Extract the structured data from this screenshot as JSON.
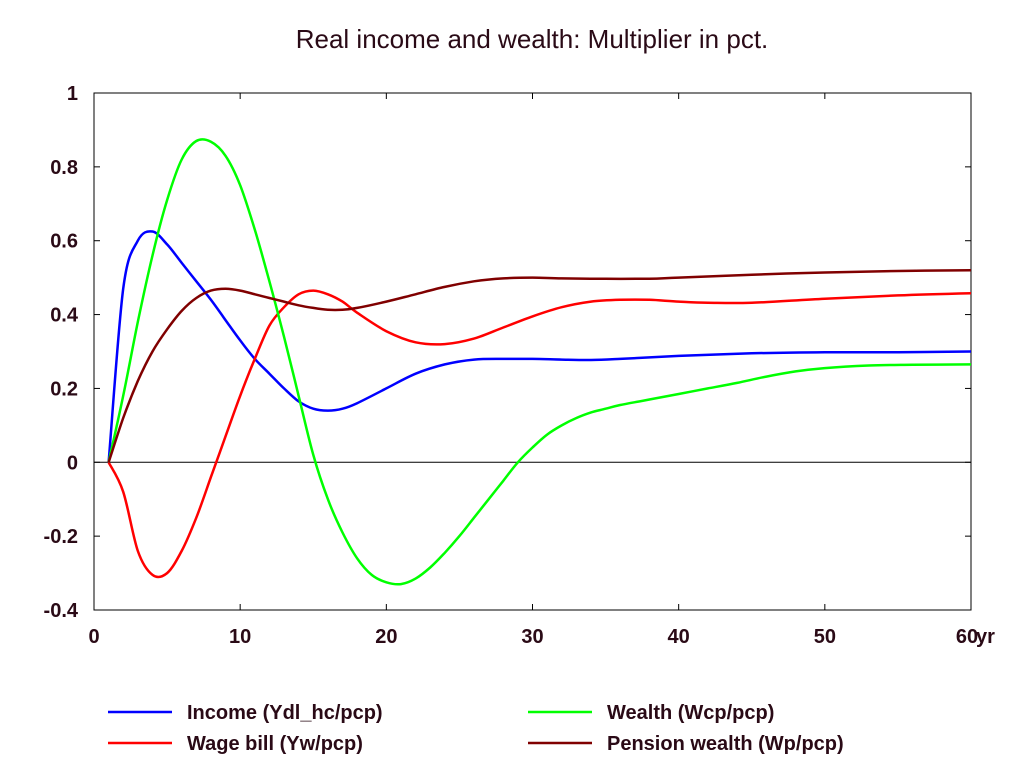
{
  "chart_data": {
    "type": "line",
    "title": "Real income and wealth: Multiplier in pct.",
    "xlabel": "",
    "ylabel": "",
    "x_unit_label": "yr",
    "xlim": [
      0,
      60
    ],
    "ylim": [
      -0.4,
      1
    ],
    "x_ticks": [
      "0",
      "10",
      "20",
      "30",
      "40",
      "50",
      "60"
    ],
    "y_ticks": [
      "1",
      "0.8",
      "0.6",
      "0.4",
      "0.2",
      "0",
      "-0.2",
      "-0.4"
    ],
    "grid": false,
    "zero_line": true,
    "legend_position": "bottom",
    "series": [
      {
        "name": "Income (Ydl_hc/pcp)",
        "color": "#0000ff",
        "points": [
          [
            1,
            0
          ],
          [
            2,
            0.47
          ],
          [
            3,
            0.6
          ],
          [
            4,
            0.625
          ],
          [
            5,
            0.59
          ],
          [
            6,
            0.54
          ],
          [
            7,
            0.49
          ],
          [
            8,
            0.44
          ],
          [
            9,
            0.385
          ],
          [
            10,
            0.33
          ],
          [
            11,
            0.28
          ],
          [
            12,
            0.24
          ],
          [
            13,
            0.2
          ],
          [
            14,
            0.165
          ],
          [
            15,
            0.145
          ],
          [
            16,
            0.14
          ],
          [
            17,
            0.145
          ],
          [
            18,
            0.16
          ],
          [
            20,
            0.2
          ],
          [
            22,
            0.24
          ],
          [
            24,
            0.265
          ],
          [
            26,
            0.278
          ],
          [
            28,
            0.28
          ],
          [
            30,
            0.28
          ],
          [
            32,
            0.278
          ],
          [
            34,
            0.277
          ],
          [
            36,
            0.28
          ],
          [
            40,
            0.288
          ],
          [
            45,
            0.295
          ],
          [
            50,
            0.298
          ],
          [
            55,
            0.298
          ],
          [
            60,
            0.3
          ]
        ]
      },
      {
        "name": "Wage bill (Yw/pcp)",
        "color": "#ff0000",
        "points": [
          [
            1,
            0
          ],
          [
            2,
            -0.08
          ],
          [
            3,
            -0.24
          ],
          [
            4,
            -0.305
          ],
          [
            5,
            -0.3
          ],
          [
            6,
            -0.24
          ],
          [
            7,
            -0.15
          ],
          [
            8,
            -0.04
          ],
          [
            9,
            0.07
          ],
          [
            10,
            0.18
          ],
          [
            11,
            0.28
          ],
          [
            12,
            0.37
          ],
          [
            13,
            0.42
          ],
          [
            14,
            0.455
          ],
          [
            15,
            0.465
          ],
          [
            16,
            0.455
          ],
          [
            17,
            0.435
          ],
          [
            18,
            0.405
          ],
          [
            20,
            0.355
          ],
          [
            22,
            0.325
          ],
          [
            24,
            0.32
          ],
          [
            26,
            0.335
          ],
          [
            28,
            0.365
          ],
          [
            30,
            0.395
          ],
          [
            32,
            0.42
          ],
          [
            34,
            0.435
          ],
          [
            36,
            0.44
          ],
          [
            38,
            0.44
          ],
          [
            40,
            0.435
          ],
          [
            42,
            0.432
          ],
          [
            45,
            0.432
          ],
          [
            50,
            0.443
          ],
          [
            55,
            0.452
          ],
          [
            60,
            0.458
          ]
        ]
      },
      {
        "name": "Wealth (Wcp/pcp)",
        "color": "#00ff00",
        "points": [
          [
            1,
            0
          ],
          [
            2,
            0.18
          ],
          [
            3,
            0.38
          ],
          [
            4,
            0.56
          ],
          [
            5,
            0.71
          ],
          [
            6,
            0.82
          ],
          [
            7,
            0.87
          ],
          [
            8,
            0.868
          ],
          [
            9,
            0.83
          ],
          [
            10,
            0.75
          ],
          [
            11,
            0.63
          ],
          [
            12,
            0.49
          ],
          [
            13,
            0.34
          ],
          [
            14,
            0.18
          ],
          [
            15,
            0.02
          ],
          [
            16,
            -0.1
          ],
          [
            17,
            -0.19
          ],
          [
            18,
            -0.26
          ],
          [
            19,
            -0.305
          ],
          [
            20,
            -0.325
          ],
          [
            21,
            -0.33
          ],
          [
            22,
            -0.315
          ],
          [
            23,
            -0.285
          ],
          [
            24,
            -0.245
          ],
          [
            25,
            -0.2
          ],
          [
            26,
            -0.15
          ],
          [
            27,
            -0.1
          ],
          [
            28,
            -0.05
          ],
          [
            29,
            0
          ],
          [
            30,
            0.04
          ],
          [
            31,
            0.075
          ],
          [
            32,
            0.1
          ],
          [
            33,
            0.12
          ],
          [
            34,
            0.135
          ],
          [
            35,
            0.145
          ],
          [
            36,
            0.155
          ],
          [
            38,
            0.17
          ],
          [
            40,
            0.185
          ],
          [
            42,
            0.2
          ],
          [
            44,
            0.215
          ],
          [
            46,
            0.232
          ],
          [
            48,
            0.246
          ],
          [
            50,
            0.255
          ],
          [
            53,
            0.262
          ],
          [
            56,
            0.264
          ],
          [
            60,
            0.265
          ]
        ]
      },
      {
        "name": "Pension wealth (Wp/pcp)",
        "color": "#800000",
        "points": [
          [
            1,
            0
          ],
          [
            2,
            0.12
          ],
          [
            3,
            0.22
          ],
          [
            4,
            0.3
          ],
          [
            5,
            0.36
          ],
          [
            6,
            0.41
          ],
          [
            7,
            0.445
          ],
          [
            8,
            0.465
          ],
          [
            9,
            0.47
          ],
          [
            10,
            0.465
          ],
          [
            11,
            0.455
          ],
          [
            12,
            0.445
          ],
          [
            13,
            0.435
          ],
          [
            14,
            0.425
          ],
          [
            15,
            0.418
          ],
          [
            16,
            0.413
          ],
          [
            17,
            0.413
          ],
          [
            18,
            0.418
          ],
          [
            20,
            0.435
          ],
          [
            22,
            0.455
          ],
          [
            24,
            0.475
          ],
          [
            26,
            0.49
          ],
          [
            28,
            0.498
          ],
          [
            30,
            0.5
          ],
          [
            32,
            0.498
          ],
          [
            35,
            0.497
          ],
          [
            38,
            0.497
          ],
          [
            40,
            0.5
          ],
          [
            45,
            0.508
          ],
          [
            50,
            0.514
          ],
          [
            55,
            0.518
          ],
          [
            60,
            0.52
          ]
        ]
      }
    ]
  }
}
